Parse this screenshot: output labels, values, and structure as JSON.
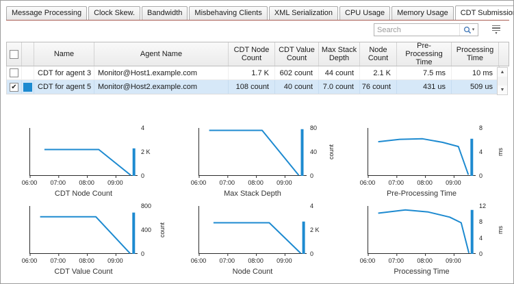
{
  "tabs": {
    "active_index": 7,
    "items": [
      {
        "label": "Message Processing"
      },
      {
        "label": "Clock Skew."
      },
      {
        "label": "Bandwidth"
      },
      {
        "label": "Misbehaving Clients"
      },
      {
        "label": "XML Serialization"
      },
      {
        "label": "CPU Usage"
      },
      {
        "label": "Memory Usage"
      },
      {
        "label": "CDT Submission"
      }
    ]
  },
  "toolbar": {
    "search_placeholder": "Search"
  },
  "table": {
    "columns": [
      "Name",
      "Agent Name",
      "CDT Node Count",
      "CDT Value Count",
      "Max Stack Depth",
      "Node Count",
      "Pre-Processing Time",
      "Processing Time"
    ],
    "rows": [
      {
        "checked": false,
        "selected": false,
        "swatch": "",
        "name": "CDT for agent 3",
        "agent": "Monitor@Host1.example.com",
        "values": [
          "1.7 K",
          "602 count",
          "44 count",
          "2.1 K",
          "7.5 ms",
          "10 ms"
        ]
      },
      {
        "checked": true,
        "selected": true,
        "swatch": "#1d8ad0",
        "name": "CDT for agent 5",
        "agent": "Monitor@Host2.example.com",
        "values": [
          "108 count",
          "40 count",
          "7.0 count",
          "76 count",
          "431 us",
          "509 us"
        ]
      }
    ]
  },
  "colors": {
    "accent": "#1d8ad0",
    "selection_bg": "#d6e8f8",
    "tab_underline": "#a85c52"
  },
  "chart_data": [
    {
      "type": "line",
      "title": "CDT Node Count",
      "x_range": [
        6,
        9.78
      ],
      "x_tick_values": [
        6,
        7,
        8,
        9
      ],
      "x_ticks": [
        "06:00",
        "07:00",
        "08:00",
        "09:00"
      ],
      "ylim": [
        0,
        4
      ],
      "y_unit": "",
      "y_ticks": [
        {
          "value": 4,
          "label": "4"
        },
        {
          "value": 2,
          "label": "2 K"
        },
        {
          "value": 0,
          "label": "0"
        }
      ],
      "series": [
        {
          "name": "CDT for agent 5",
          "color": "#1d8ad0",
          "points": [
            [
              6.5,
              2.2
            ],
            [
              8.4,
              2.2
            ],
            [
              9.52,
              0.05
            ]
          ]
        }
      ],
      "end_spike": {
        "x": 9.63,
        "y": 2.3
      }
    },
    {
      "type": "line",
      "title": "Max Stack Depth",
      "x_range": [
        6,
        9.78
      ],
      "x_tick_values": [
        6,
        7,
        8,
        9
      ],
      "x_ticks": [
        "06:00",
        "07:00",
        "08:00",
        "09:00"
      ],
      "ylim": [
        0,
        80
      ],
      "y_unit": "count",
      "y_ticks": [
        {
          "value": 80,
          "label": "80"
        },
        {
          "value": 40,
          "label": "40"
        },
        {
          "value": 0,
          "label": "0"
        }
      ],
      "series": [
        {
          "name": "CDT for agent 5",
          "color": "#1d8ad0",
          "points": [
            [
              6.35,
              76
            ],
            [
              8.2,
              76
            ],
            [
              9.48,
              1
            ]
          ]
        }
      ],
      "end_spike": {
        "x": 9.6,
        "y": 78
      }
    },
    {
      "type": "line",
      "title": "Pre-Processing Time",
      "x_range": [
        6,
        9.78
      ],
      "x_tick_values": [
        6,
        7,
        8,
        9
      ],
      "x_ticks": [
        "06:00",
        "07:00",
        "08:00",
        "09:00"
      ],
      "ylim": [
        0,
        8
      ],
      "y_unit": "ms",
      "y_ticks": [
        {
          "value": 8,
          "label": "8"
        },
        {
          "value": 4,
          "label": "4"
        },
        {
          "value": 0,
          "label": "0"
        }
      ],
      "series": [
        {
          "name": "CDT for agent 5",
          "color": "#1d8ad0",
          "points": [
            [
              6.35,
              5.7
            ],
            [
              7.1,
              6.1
            ],
            [
              7.9,
              6.2
            ],
            [
              8.6,
              5.6
            ],
            [
              9.15,
              4.9
            ],
            [
              9.5,
              0.2
            ]
          ]
        }
      ],
      "end_spike": {
        "x": 9.62,
        "y": 6.2
      }
    },
    {
      "type": "line",
      "title": "CDT Value Count",
      "x_range": [
        6,
        9.78
      ],
      "x_tick_values": [
        6,
        7,
        8,
        9
      ],
      "x_ticks": [
        "06:00",
        "07:00",
        "08:00",
        "09:00"
      ],
      "ylim": [
        0,
        800
      ],
      "y_unit": "count",
      "y_ticks": [
        {
          "value": 800,
          "label": "800"
        },
        {
          "value": 400,
          "label": "400"
        },
        {
          "value": 0,
          "label": "0"
        }
      ],
      "series": [
        {
          "name": "CDT for agent 5",
          "color": "#1d8ad0",
          "points": [
            [
              6.35,
              620
            ],
            [
              8.3,
              620
            ],
            [
              9.5,
              5
            ]
          ]
        }
      ],
      "end_spike": {
        "x": 9.62,
        "y": 690
      }
    },
    {
      "type": "line",
      "title": "Node Count",
      "x_range": [
        6,
        9.78
      ],
      "x_tick_values": [
        6,
        7,
        8,
        9
      ],
      "x_ticks": [
        "06:00",
        "07:00",
        "08:00",
        "09:00"
      ],
      "ylim": [
        0,
        4
      ],
      "y_unit": "",
      "y_ticks": [
        {
          "value": 4,
          "label": "4"
        },
        {
          "value": 2,
          "label": "2 K"
        },
        {
          "value": 0,
          "label": "0"
        }
      ],
      "series": [
        {
          "name": "CDT for agent 5",
          "color": "#1d8ad0",
          "points": [
            [
              6.5,
              2.6
            ],
            [
              8.45,
              2.6
            ],
            [
              9.55,
              0.05
            ]
          ]
        }
      ],
      "end_spike": {
        "x": 9.65,
        "y": 2.7
      }
    },
    {
      "type": "line",
      "title": "Processing Time",
      "x_range": [
        6,
        9.78
      ],
      "x_tick_values": [
        6,
        7,
        8,
        9
      ],
      "x_ticks": [
        "06:00",
        "07:00",
        "08:00",
        "09:00"
      ],
      "ylim": [
        0,
        12
      ],
      "y_unit": "ms",
      "y_ticks": [
        {
          "value": 12,
          "label": "12"
        },
        {
          "value": 8,
          "label": "8"
        },
        {
          "value": 4,
          "label": "4"
        },
        {
          "value": 0,
          "label": "0"
        }
      ],
      "series": [
        {
          "name": "CDT for agent 5",
          "color": "#1d8ad0",
          "points": [
            [
              6.35,
              10.2
            ],
            [
              7.3,
              11
            ],
            [
              8.1,
              10.5
            ],
            [
              8.85,
              9.2
            ],
            [
              9.25,
              7.8
            ],
            [
              9.52,
              0.2
            ]
          ]
        }
      ],
      "end_spike": {
        "x": 9.63,
        "y": 11
      }
    }
  ]
}
